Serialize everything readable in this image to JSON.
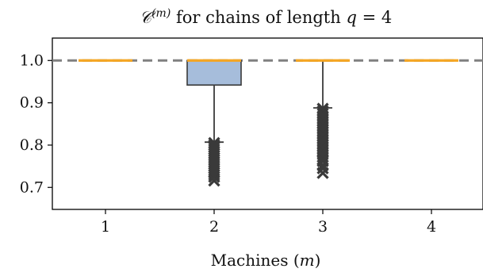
{
  "chart_data": {
    "type": "box",
    "title": "𝒞(m) for chains of length q = 4",
    "xlabel": "Machines (m)",
    "ylabel": "",
    "categories": [
      "1",
      "2",
      "3",
      "4"
    ],
    "ylim": [
      0.648,
      1.053
    ],
    "yticks": [
      "0.7",
      "0.8",
      "0.9",
      "1.0"
    ],
    "reference_line": {
      "y": 1.0,
      "style": "dashed",
      "color": "#808080"
    },
    "boxes": [
      {
        "category": "1",
        "q1": 1.0,
        "median": 1.0,
        "q3": 1.0,
        "whisker_low": 1.0,
        "whisker_high": 1.0,
        "outliers": []
      },
      {
        "category": "2",
        "q1": 0.942,
        "median": 1.0,
        "q3": 1.0,
        "whisker_low": 0.807,
        "whisker_high": 1.0,
        "outliers": [
          0.805,
          0.8,
          0.795,
          0.79,
          0.785,
          0.78,
          0.775,
          0.77,
          0.765,
          0.76,
          0.755,
          0.75,
          0.745,
          0.74,
          0.735,
          0.73,
          0.725,
          0.716
        ]
      },
      {
        "category": "3",
        "q1": 1.0,
        "median": 1.0,
        "q3": 1.0,
        "whisker_low": 0.888,
        "whisker_high": 1.0,
        "outliers": [
          0.886,
          0.88,
          0.874,
          0.868,
          0.862,
          0.856,
          0.85,
          0.844,
          0.838,
          0.832,
          0.826,
          0.82,
          0.814,
          0.808,
          0.802,
          0.796,
          0.79,
          0.784,
          0.778,
          0.772,
          0.766,
          0.762,
          0.752,
          0.745,
          0.734
        ]
      },
      {
        "category": "4",
        "q1": 1.0,
        "median": 1.0,
        "q3": 1.0,
        "whisker_low": 1.0,
        "whisker_high": 1.0,
        "outliers": []
      }
    ],
    "colors": {
      "box_fill": "#a6bddb",
      "box_edge": "#3a3a3a",
      "median": "#f5a623",
      "outlier": "#3a3a3a"
    },
    "grid": false,
    "legend": "none"
  }
}
